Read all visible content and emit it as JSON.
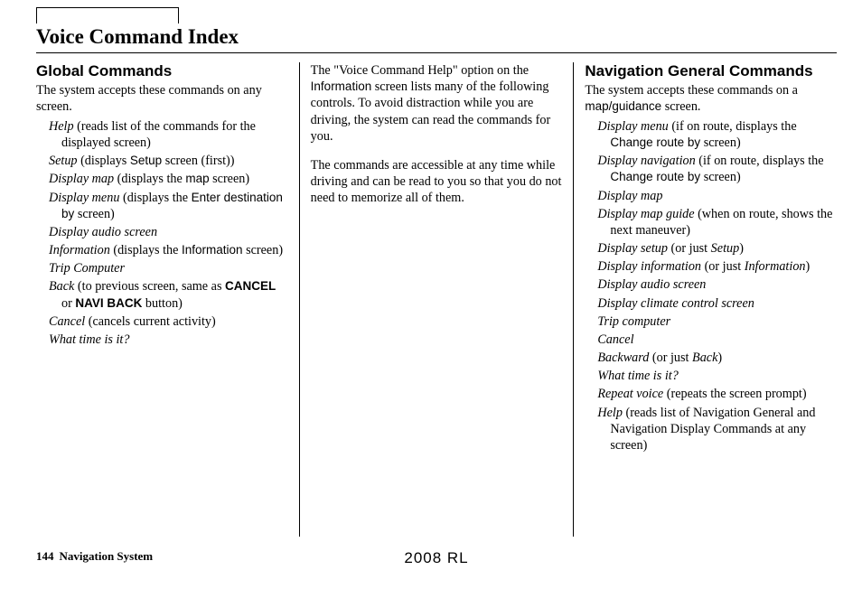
{
  "page": {
    "title": "Voice Command Index",
    "footer_page": "144",
    "footer_label": "Navigation System",
    "footer_center": "2008  RL"
  },
  "col1": {
    "heading": "Global Commands",
    "intro": "The system accepts these commands on any screen.",
    "items": [
      {
        "cmd": "Help",
        "rest": " (reads list of the commands for the displayed screen)"
      },
      {
        "cmd": "Setup",
        "rest_pre": " (displays ",
        "ui": "Setup",
        "rest_post": " screen (first))"
      },
      {
        "cmd": "Display map",
        "rest_pre": " (displays the ",
        "ui": "map",
        "rest_post": " screen)"
      },
      {
        "cmd": "Display menu",
        "rest_pre": " (displays the ",
        "ui": "Enter destination by",
        "rest_post": " screen)"
      },
      {
        "cmd": "Display audio screen"
      },
      {
        "cmd": "Information",
        "rest_pre": " (displays the ",
        "ui": "Information",
        "rest_post": " screen)"
      },
      {
        "cmd": "Trip Computer"
      },
      {
        "cmd": "Back",
        "rest_pre": " (to previous screen, same as ",
        "uib1": "CANCEL",
        "mid": " or ",
        "uib2": "NAVI BACK",
        "rest_post": " button)"
      },
      {
        "cmd": "Cancel",
        "rest": " (cancels current activity)"
      },
      {
        "cmd": "What time is it?"
      }
    ]
  },
  "col2": {
    "p1_a": "The \"Voice Command Help\" option on the ",
    "p1_ui": "Information",
    "p1_b": " screen lists many of the following controls. To avoid distraction while you are driving, the system can read the commands for you.",
    "p2": "The commands are accessible at any time while driving and can be read to you so that you do not need to memorize all of them."
  },
  "col3": {
    "heading": "Navigation General Commands",
    "intro_a": "The system accepts these commands on a ",
    "intro_ui": "map/guidance",
    "intro_b": " screen.",
    "items": [
      {
        "cmd": "Display menu",
        "rest_pre": " (if on route, displays the ",
        "ui": "Change route by",
        "rest_post": " screen)"
      },
      {
        "cmd": "Display navigation",
        "rest_pre": " (if on route, displays the ",
        "ui": "Change route by",
        "rest_post": " screen)"
      },
      {
        "cmd": "Display map"
      },
      {
        "cmd": "Display map guide",
        "rest": " (when on route, shows the next maneuver)"
      },
      {
        "cmd": "Display setup",
        "rest_pre": " (or just ",
        "cmd2": "Setup",
        "rest_post": ")"
      },
      {
        "cmd": "Display information",
        "rest_pre": " (or just ",
        "cmd2": "Information",
        "rest_post": ")"
      },
      {
        "cmd": "Display audio screen"
      },
      {
        "cmd": "Display climate control screen"
      },
      {
        "cmd": "Trip computer"
      },
      {
        "cmd": "Cancel"
      },
      {
        "cmd": "Backward",
        "rest_pre": " (or just ",
        "cmd2": "Back",
        "rest_post": ")"
      },
      {
        "cmd": "What time is it?"
      },
      {
        "cmd": "Repeat voice",
        "rest": " (repeats the screen prompt)"
      },
      {
        "cmd": "Help",
        "rest": " (reads list of Navigation General and Navigation Display Commands at any screen)"
      }
    ]
  }
}
